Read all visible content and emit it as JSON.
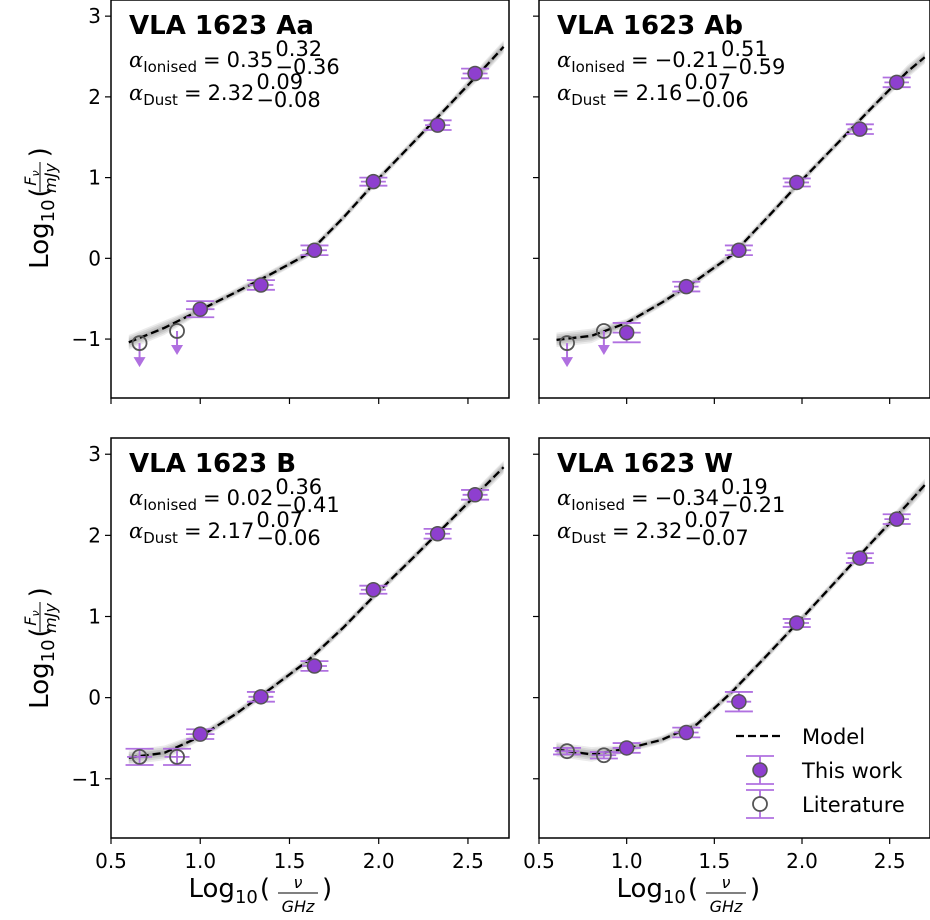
{
  "colors": {
    "this_work": "#8e3fcf",
    "error_bar": "#b070e0",
    "literature_edge": "#555555",
    "model": "#000000",
    "band": "#808080"
  },
  "legend": {
    "placement": "lower-right of bottom-right panel",
    "model": "Model",
    "this_work": "This work",
    "literature": "Literature"
  },
  "axes_text": {
    "xlabel_prefix": "Log",
    "xlabel_sub": "10",
    "xlabel_paren_open": "(",
    "xlabel_num": "ν",
    "xlabel_den": "GHz",
    "xlabel_paren_close": ")",
    "ylabel_prefix": "Log",
    "ylabel_sub": "10",
    "ylabel_paren_open": "(",
    "ylabel_num": "F",
    "ylabel_num_sub": "ν",
    "ylabel_den": "mJy",
    "ylabel_paren_close": ")",
    "ion_sub": "Ionised",
    "dust_sub": "Dust",
    "alpha_symbol": "α",
    "equals": "="
  },
  "chart_data": [
    {
      "type": "scatter",
      "title": "VLA 1623 Aa",
      "xlim": [
        0.5,
        2.73
      ],
      "ylim": [
        -1.73,
        3.2
      ],
      "xticks": [
        "0.5",
        "1.0",
        "1.5",
        "2.0",
        "2.5"
      ],
      "yticks": [
        "−1",
        "0",
        "1",
        "2",
        "3"
      ],
      "x_tick_values": [
        0.5,
        1.0,
        1.5,
        2.0,
        2.5
      ],
      "y_tick_values": [
        -1,
        0,
        1,
        2,
        3
      ],
      "alpha_ion": {
        "value": "0.35",
        "up": "0.32",
        "low": "−0.36"
      },
      "alpha_dust": {
        "value": "2.32",
        "up": "0.09",
        "low": "−0.08"
      },
      "model": {
        "x": [
          0.6,
          0.8,
          1.0,
          1.2,
          1.4,
          1.6,
          1.8,
          2.0,
          2.2,
          2.4,
          2.6,
          2.7
        ],
        "y": [
          -1.04,
          -0.86,
          -0.64,
          -0.42,
          -0.19,
          0.05,
          0.5,
          0.99,
          1.45,
          1.91,
          2.38,
          2.62
        ]
      },
      "this_work": [
        {
          "x": 1.0,
          "y": -0.63,
          "err": 0.1,
          "xerr": 0.08
        },
        {
          "x": 1.34,
          "y": -0.33,
          "err": 0.06,
          "xerr": 0.07
        },
        {
          "x": 1.64,
          "y": 0.1,
          "err": 0.06,
          "xerr": 0.07
        },
        {
          "x": 1.97,
          "y": 0.95,
          "err": 0.05,
          "xerr": 0.07
        },
        {
          "x": 2.33,
          "y": 1.65,
          "err": 0.06,
          "xerr": 0.07
        },
        {
          "x": 2.54,
          "y": 2.29,
          "err": 0.06,
          "xerr": 0.07
        }
      ],
      "literature": [
        {
          "x": 0.66,
          "y": -1.05,
          "upper_limit": true
        },
        {
          "x": 0.87,
          "y": -0.9,
          "upper_limit": true
        }
      ]
    },
    {
      "type": "scatter",
      "title": "VLA 1623 Ab",
      "xlim": [
        0.5,
        2.73
      ],
      "ylim": [
        -1.73,
        3.2
      ],
      "xticks": [
        "0.5",
        "1.0",
        "1.5",
        "2.0",
        "2.5"
      ],
      "yticks": [
        "−1",
        "0",
        "1",
        "2",
        "3"
      ],
      "x_tick_values": [
        0.5,
        1.0,
        1.5,
        2.0,
        2.5
      ],
      "y_tick_values": [
        -1,
        0,
        1,
        2,
        3
      ],
      "alpha_ion": {
        "value": "−0.21",
        "up": "0.51",
        "low": "−0.59"
      },
      "alpha_dust": {
        "value": "2.16",
        "up": "0.07",
        "low": "−0.06"
      },
      "model": {
        "x": [
          0.6,
          0.8,
          1.0,
          1.2,
          1.4,
          1.6,
          1.8,
          2.0,
          2.2,
          2.4,
          2.6,
          2.7
        ],
        "y": [
          -1.01,
          -0.96,
          -0.8,
          -0.55,
          -0.27,
          0.04,
          0.5,
          0.97,
          1.42,
          1.87,
          2.31,
          2.49
        ]
      },
      "this_work": [
        {
          "x": 1.0,
          "y": -0.92,
          "err": 0.12,
          "xerr": 0.08
        },
        {
          "x": 1.34,
          "y": -0.35,
          "err": 0.06,
          "xerr": 0.07
        },
        {
          "x": 1.64,
          "y": 0.1,
          "err": 0.06,
          "xerr": 0.07
        },
        {
          "x": 1.97,
          "y": 0.94,
          "err": 0.05,
          "xerr": 0.07
        },
        {
          "x": 2.33,
          "y": 1.6,
          "err": 0.06,
          "xerr": 0.07
        },
        {
          "x": 2.54,
          "y": 2.18,
          "err": 0.06,
          "xerr": 0.07
        }
      ],
      "literature": [
        {
          "x": 0.66,
          "y": -1.05,
          "upper_limit": true
        },
        {
          "x": 0.87,
          "y": -0.9,
          "upper_limit": true
        }
      ]
    },
    {
      "type": "scatter",
      "title": "VLA 1623 B",
      "xlim": [
        0.5,
        2.73
      ],
      "ylim": [
        -1.73,
        3.2
      ],
      "xticks": [
        "0.5",
        "1.0",
        "1.5",
        "2.0",
        "2.5"
      ],
      "yticks": [
        "−1",
        "0",
        "1",
        "2",
        "3"
      ],
      "x_tick_values": [
        0.5,
        1.0,
        1.5,
        2.0,
        2.5
      ],
      "y_tick_values": [
        -1,
        0,
        1,
        2,
        3
      ],
      "alpha_ion": {
        "value": "0.02",
        "up": "0.36",
        "low": "−0.41"
      },
      "alpha_dust": {
        "value": "2.17",
        "up": "0.07",
        "low": "−0.06"
      },
      "model": {
        "x": [
          0.6,
          0.8,
          1.0,
          1.2,
          1.4,
          1.6,
          1.8,
          2.0,
          2.2,
          2.4,
          2.6,
          2.7
        ],
        "y": [
          -0.74,
          -0.68,
          -0.48,
          -0.2,
          0.12,
          0.45,
          0.86,
          1.31,
          1.74,
          2.18,
          2.62,
          2.84
        ]
      },
      "this_work": [
        {
          "x": 1.0,
          "y": -0.45,
          "err": 0.06,
          "xerr": 0.08
        },
        {
          "x": 1.34,
          "y": 0.01,
          "err": 0.06,
          "xerr": 0.07
        },
        {
          "x": 1.64,
          "y": 0.39,
          "err": 0.06,
          "xerr": 0.07
        },
        {
          "x": 1.97,
          "y": 1.33,
          "err": 0.05,
          "xerr": 0.07
        },
        {
          "x": 2.33,
          "y": 2.02,
          "err": 0.06,
          "xerr": 0.07
        },
        {
          "x": 2.54,
          "y": 2.5,
          "err": 0.06,
          "xerr": 0.07
        }
      ],
      "literature": [
        {
          "x": 0.66,
          "y": -0.73,
          "err": 0.1,
          "xerr": 0.07
        },
        {
          "x": 0.87,
          "y": -0.73,
          "err": 0.1,
          "xerr": 0.07
        }
      ]
    },
    {
      "type": "scatter",
      "title": "VLA 1623 W",
      "xlim": [
        0.5,
        2.73
      ],
      "ylim": [
        -1.73,
        3.2
      ],
      "xticks": [
        "0.5",
        "1.0",
        "1.5",
        "2.0",
        "2.5"
      ],
      "yticks": [
        "−1",
        "0",
        "1",
        "2",
        "3"
      ],
      "x_tick_values": [
        0.5,
        1.0,
        1.5,
        2.0,
        2.5
      ],
      "y_tick_values": [
        -1,
        0,
        1,
        2,
        3
      ],
      "alpha_ion": {
        "value": "−0.34",
        "up": "0.19",
        "low": "−0.21"
      },
      "alpha_dust": {
        "value": "2.32",
        "up": "0.07",
        "low": "−0.07"
      },
      "model": {
        "x": [
          0.6,
          0.8,
          1.0,
          1.2,
          1.4,
          1.6,
          1.8,
          2.0,
          2.2,
          2.4,
          2.6,
          2.7
        ],
        "y": [
          -0.64,
          -0.7,
          -0.63,
          -0.52,
          -0.33,
          0.07,
          0.52,
          0.98,
          1.45,
          1.92,
          2.38,
          2.62
        ]
      },
      "this_work": [
        {
          "x": 1.0,
          "y": -0.62,
          "err": 0.06,
          "xerr": 0.08
        },
        {
          "x": 1.34,
          "y": -0.43,
          "err": 0.06,
          "xerr": 0.07
        },
        {
          "x": 1.64,
          "y": -0.05,
          "err": 0.12,
          "xerr": 0.07
        },
        {
          "x": 1.97,
          "y": 0.92,
          "err": 0.05,
          "xerr": 0.07
        },
        {
          "x": 2.33,
          "y": 1.72,
          "err": 0.06,
          "xerr": 0.07
        },
        {
          "x": 2.54,
          "y": 2.2,
          "err": 0.06,
          "xerr": 0.07
        }
      ],
      "literature": [
        {
          "x": 0.66,
          "y": -0.66,
          "err": 0.04,
          "xerr": 0.07
        },
        {
          "x": 0.87,
          "y": -0.71,
          "err": 0.04,
          "xerr": 0.07
        }
      ]
    }
  ]
}
